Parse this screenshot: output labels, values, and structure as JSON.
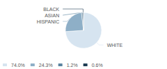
{
  "chart_data": {
    "type": "pie",
    "categories": [
      "WHITE",
      "HISPANIC",
      "ASIAN",
      "BLACK"
    ],
    "values": [
      74.0,
      24.3,
      1.2,
      0.6
    ],
    "value_labels": [
      "74.0%",
      "24.3%",
      "1.2%",
      "0.6%"
    ],
    "colors": [
      "#d6e4f0",
      "#8eafc7",
      "#5b84a0",
      "#1e3d54"
    ],
    "legend": "lower left"
  }
}
